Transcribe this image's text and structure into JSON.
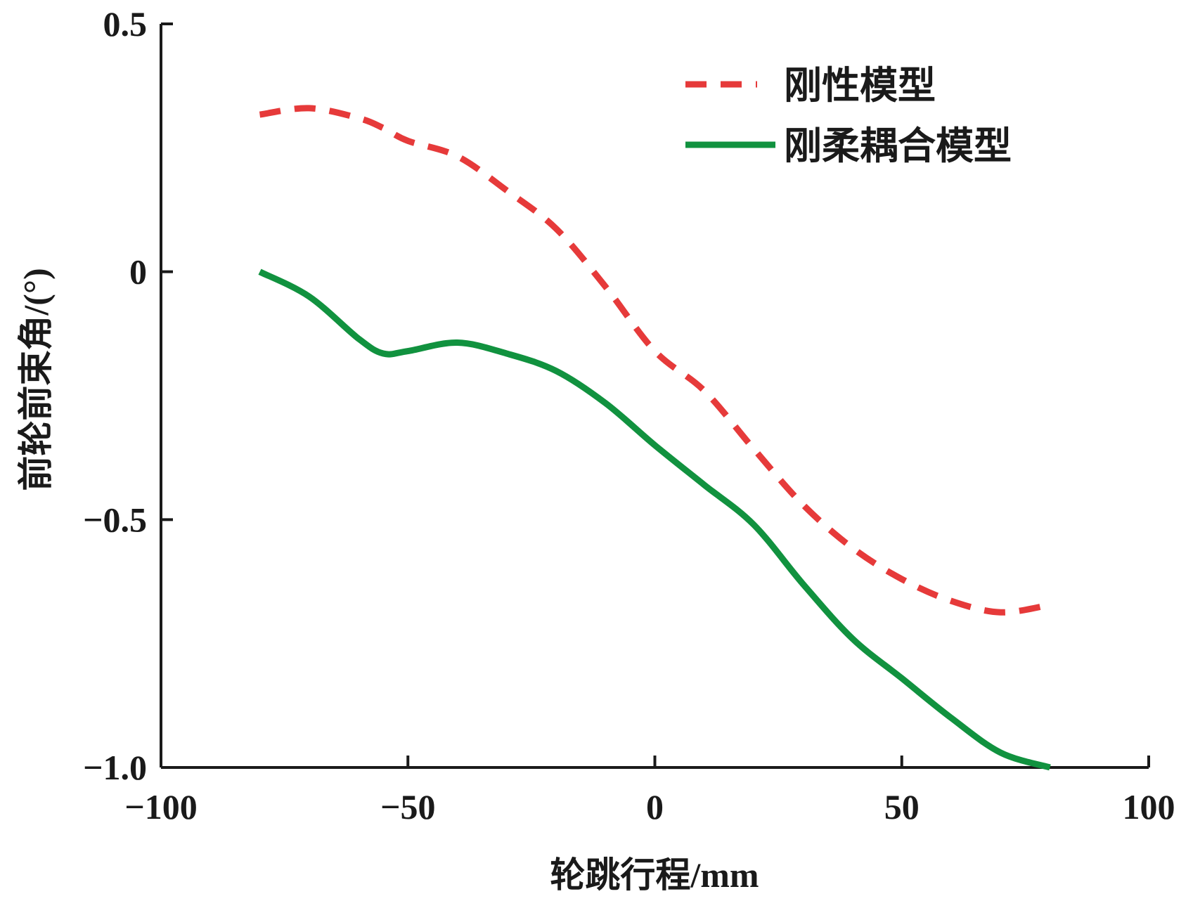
{
  "chart_data": {
    "type": "line",
    "title": "",
    "xlabel": "轮跳行程/mm",
    "ylabel": "前轮前束角/(°)",
    "xlim": [
      -100,
      100
    ],
    "ylim": [
      -1.0,
      0.5
    ],
    "xticks": [
      -100,
      -50,
      0,
      50,
      100
    ],
    "xtick_labels": [
      "−100",
      "−50",
      "0",
      "50",
      "100"
    ],
    "yticks": [
      0.5,
      0,
      -0.5,
      -1.0
    ],
    "ytick_labels": [
      "0.5",
      "0",
      "−0.5",
      "−1.0"
    ],
    "grid": false,
    "legend_position": "top-right",
    "x": [
      -80,
      -70,
      -60,
      -55,
      -50,
      -40,
      -30,
      -20,
      -10,
      0,
      10,
      20,
      30,
      40,
      50,
      60,
      70,
      80
    ],
    "series": [
      {
        "name": "刚性模型",
        "style": "dashed",
        "color": "#e63a3a",
        "values": [
          0.317,
          0.33,
          0.31,
          0.29,
          0.264,
          0.233,
          0.164,
          0.087,
          -0.03,
          -0.16,
          -0.24,
          -0.357,
          -0.47,
          -0.557,
          -0.62,
          -0.664,
          -0.687,
          -0.672
        ]
      },
      {
        "name": "刚柔耦合模型",
        "style": "solid",
        "color": "#11923f",
        "values": [
          0.0,
          -0.05,
          -0.135,
          -0.165,
          -0.16,
          -0.143,
          -0.165,
          -0.2,
          -0.265,
          -0.35,
          -0.43,
          -0.51,
          -0.63,
          -0.74,
          -0.82,
          -0.9,
          -0.97,
          -1.0
        ]
      }
    ]
  }
}
